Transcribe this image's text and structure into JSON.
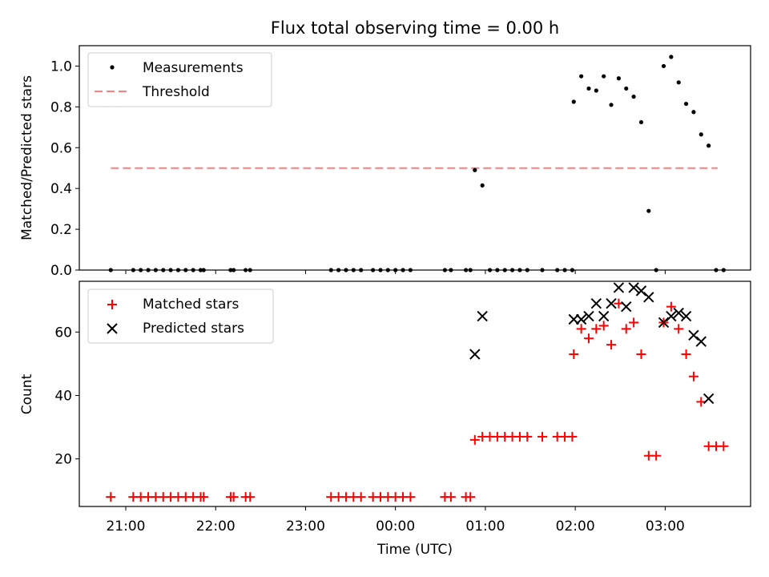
{
  "title": "Flux total observing time = 0.00 h",
  "chart_data": [
    {
      "type": "scatter",
      "ylabel": "Matched/Predicted stars",
      "xlabel": "",
      "xlim": [
        "20:29",
        "03:57"
      ],
      "ylim": [
        0,
        1.1
      ],
      "yticks": [
        "0.0",
        "0.2",
        "0.4",
        "0.6",
        "0.8",
        "1.0"
      ],
      "grid": false,
      "legend_placement": "top-left",
      "threshold": {
        "value": 0.5,
        "x_start": "20:50",
        "x_end": "03:35",
        "color": "#ff7f7f"
      },
      "series": [
        {
          "name": "Measurements",
          "color": "#000000",
          "points": [
            [
              "20:50",
              0
            ],
            [
              "21:05",
              0
            ],
            [
              "21:10",
              0
            ],
            [
              "21:15",
              0
            ],
            [
              "21:20",
              0
            ],
            [
              "21:25",
              0
            ],
            [
              "21:30",
              0
            ],
            [
              "21:35",
              0
            ],
            [
              "21:40",
              0
            ],
            [
              "21:45",
              0
            ],
            [
              "21:50",
              0
            ],
            [
              "21:52",
              0
            ],
            [
              "22:10",
              0
            ],
            [
              "22:12",
              0
            ],
            [
              "22:20",
              0
            ],
            [
              "22:23",
              0
            ],
            [
              "23:17",
              0
            ],
            [
              "23:22",
              0
            ],
            [
              "23:27",
              0
            ],
            [
              "23:32",
              0
            ],
            [
              "23:37",
              0
            ],
            [
              "23:45",
              0
            ],
            [
              "23:50",
              0
            ],
            [
              "23:55",
              0
            ],
            [
              "00:00",
              0
            ],
            [
              "00:05",
              0
            ],
            [
              "00:10",
              0
            ],
            [
              "00:33",
              0
            ],
            [
              "00:37",
              0
            ],
            [
              "00:47",
              0
            ],
            [
              "00:50",
              0
            ],
            [
              "00:53",
              0.49
            ],
            [
              "00:58",
              0.415
            ],
            [
              "01:03",
              0
            ],
            [
              "01:08",
              0
            ],
            [
              "01:13",
              0
            ],
            [
              "01:18",
              0
            ],
            [
              "01:23",
              0
            ],
            [
              "01:28",
              0
            ],
            [
              "01:38",
              0
            ],
            [
              "01:48",
              0
            ],
            [
              "01:53",
              0
            ],
            [
              "01:58",
              0
            ],
            [
              "01:59",
              0.825
            ],
            [
              "02:04",
              0.95
            ],
            [
              "02:09",
              0.89
            ],
            [
              "02:14",
              0.88
            ],
            [
              "02:19",
              0.95
            ],
            [
              "02:24",
              0.81
            ],
            [
              "02:29",
              0.94
            ],
            [
              "02:34",
              0.89
            ],
            [
              "02:39",
              0.85
            ],
            [
              "02:44",
              0.725
            ],
            [
              "02:49",
              0.29
            ],
            [
              "02:54",
              0
            ],
            [
              "02:59",
              1.0
            ],
            [
              "03:04",
              1.045
            ],
            [
              "03:09",
              0.92
            ],
            [
              "03:14",
              0.815
            ],
            [
              "03:19",
              0.775
            ],
            [
              "03:24",
              0.665
            ],
            [
              "03:29",
              0.61
            ],
            [
              "03:34",
              0
            ],
            [
              "03:39",
              0
            ]
          ]
        }
      ]
    },
    {
      "type": "scatter",
      "ylabel": "Count",
      "xlabel": "Time (UTC)",
      "xlim": [
        "20:29",
        "03:57"
      ],
      "ylim": [
        5,
        76
      ],
      "yticks": [
        "20",
        "40",
        "60"
      ],
      "xticks": [
        "21:00",
        "22:00",
        "23:00",
        "00:00",
        "01:00",
        "02:00",
        "03:00"
      ],
      "grid": false,
      "legend_placement": "top-left",
      "series": [
        {
          "name": "Matched stars",
          "color": "#ff0000",
          "marker": "plus",
          "points": [
            [
              "20:50",
              8
            ],
            [
              "21:05",
              8
            ],
            [
              "21:10",
              8
            ],
            [
              "21:15",
              8
            ],
            [
              "21:20",
              8
            ],
            [
              "21:25",
              8
            ],
            [
              "21:30",
              8
            ],
            [
              "21:35",
              8
            ],
            [
              "21:40",
              8
            ],
            [
              "21:45",
              8
            ],
            [
              "21:50",
              8
            ],
            [
              "21:52",
              8
            ],
            [
              "22:10",
              8
            ],
            [
              "22:12",
              8
            ],
            [
              "22:20",
              8
            ],
            [
              "22:23",
              8
            ],
            [
              "23:17",
              8
            ],
            [
              "23:22",
              8
            ],
            [
              "23:27",
              8
            ],
            [
              "23:32",
              8
            ],
            [
              "23:37",
              8
            ],
            [
              "23:45",
              8
            ],
            [
              "23:50",
              8
            ],
            [
              "23:55",
              8
            ],
            [
              "00:00",
              8
            ],
            [
              "00:05",
              8
            ],
            [
              "00:10",
              8
            ],
            [
              "00:33",
              8
            ],
            [
              "00:37",
              8
            ],
            [
              "00:47",
              8
            ],
            [
              "00:50",
              8
            ],
            [
              "00:53",
              26
            ],
            [
              "00:58",
              27
            ],
            [
              "01:03",
              27
            ],
            [
              "01:08",
              27
            ],
            [
              "01:13",
              27
            ],
            [
              "01:18",
              27
            ],
            [
              "01:23",
              27
            ],
            [
              "01:28",
              27
            ],
            [
              "01:38",
              27
            ],
            [
              "01:48",
              27
            ],
            [
              "01:53",
              27
            ],
            [
              "01:58",
              27
            ],
            [
              "01:59",
              53
            ],
            [
              "02:04",
              61
            ],
            [
              "02:09",
              58
            ],
            [
              "02:14",
              61
            ],
            [
              "02:19",
              62
            ],
            [
              "02:24",
              56
            ],
            [
              "02:29",
              69
            ],
            [
              "02:34",
              61
            ],
            [
              "02:39",
              63
            ],
            [
              "02:44",
              53
            ],
            [
              "02:49",
              21
            ],
            [
              "02:54",
              21
            ],
            [
              "02:59",
              63
            ],
            [
              "03:04",
              68
            ],
            [
              "03:09",
              61
            ],
            [
              "03:14",
              53
            ],
            [
              "03:19",
              46
            ],
            [
              "03:24",
              38
            ],
            [
              "03:29",
              24
            ],
            [
              "03:34",
              24
            ],
            [
              "03:39",
              24
            ]
          ]
        },
        {
          "name": "Predicted stars",
          "color": "#000000",
          "marker": "x",
          "points": [
            [
              "00:53",
              53
            ],
            [
              "00:58",
              65
            ],
            [
              "01:59",
              64
            ],
            [
              "02:04",
              64
            ],
            [
              "02:09",
              65
            ],
            [
              "02:14",
              69
            ],
            [
              "02:19",
              65
            ],
            [
              "02:24",
              69
            ],
            [
              "02:29",
              74
            ],
            [
              "02:34",
              68
            ],
            [
              "02:39",
              74
            ],
            [
              "02:44",
              73
            ],
            [
              "02:49",
              71
            ],
            [
              "02:59",
              63
            ],
            [
              "03:04",
              65
            ],
            [
              "03:09",
              66
            ],
            [
              "03:14",
              65
            ],
            [
              "03:19",
              59
            ],
            [
              "03:24",
              57
            ],
            [
              "03:29",
              39
            ]
          ]
        }
      ]
    }
  ]
}
